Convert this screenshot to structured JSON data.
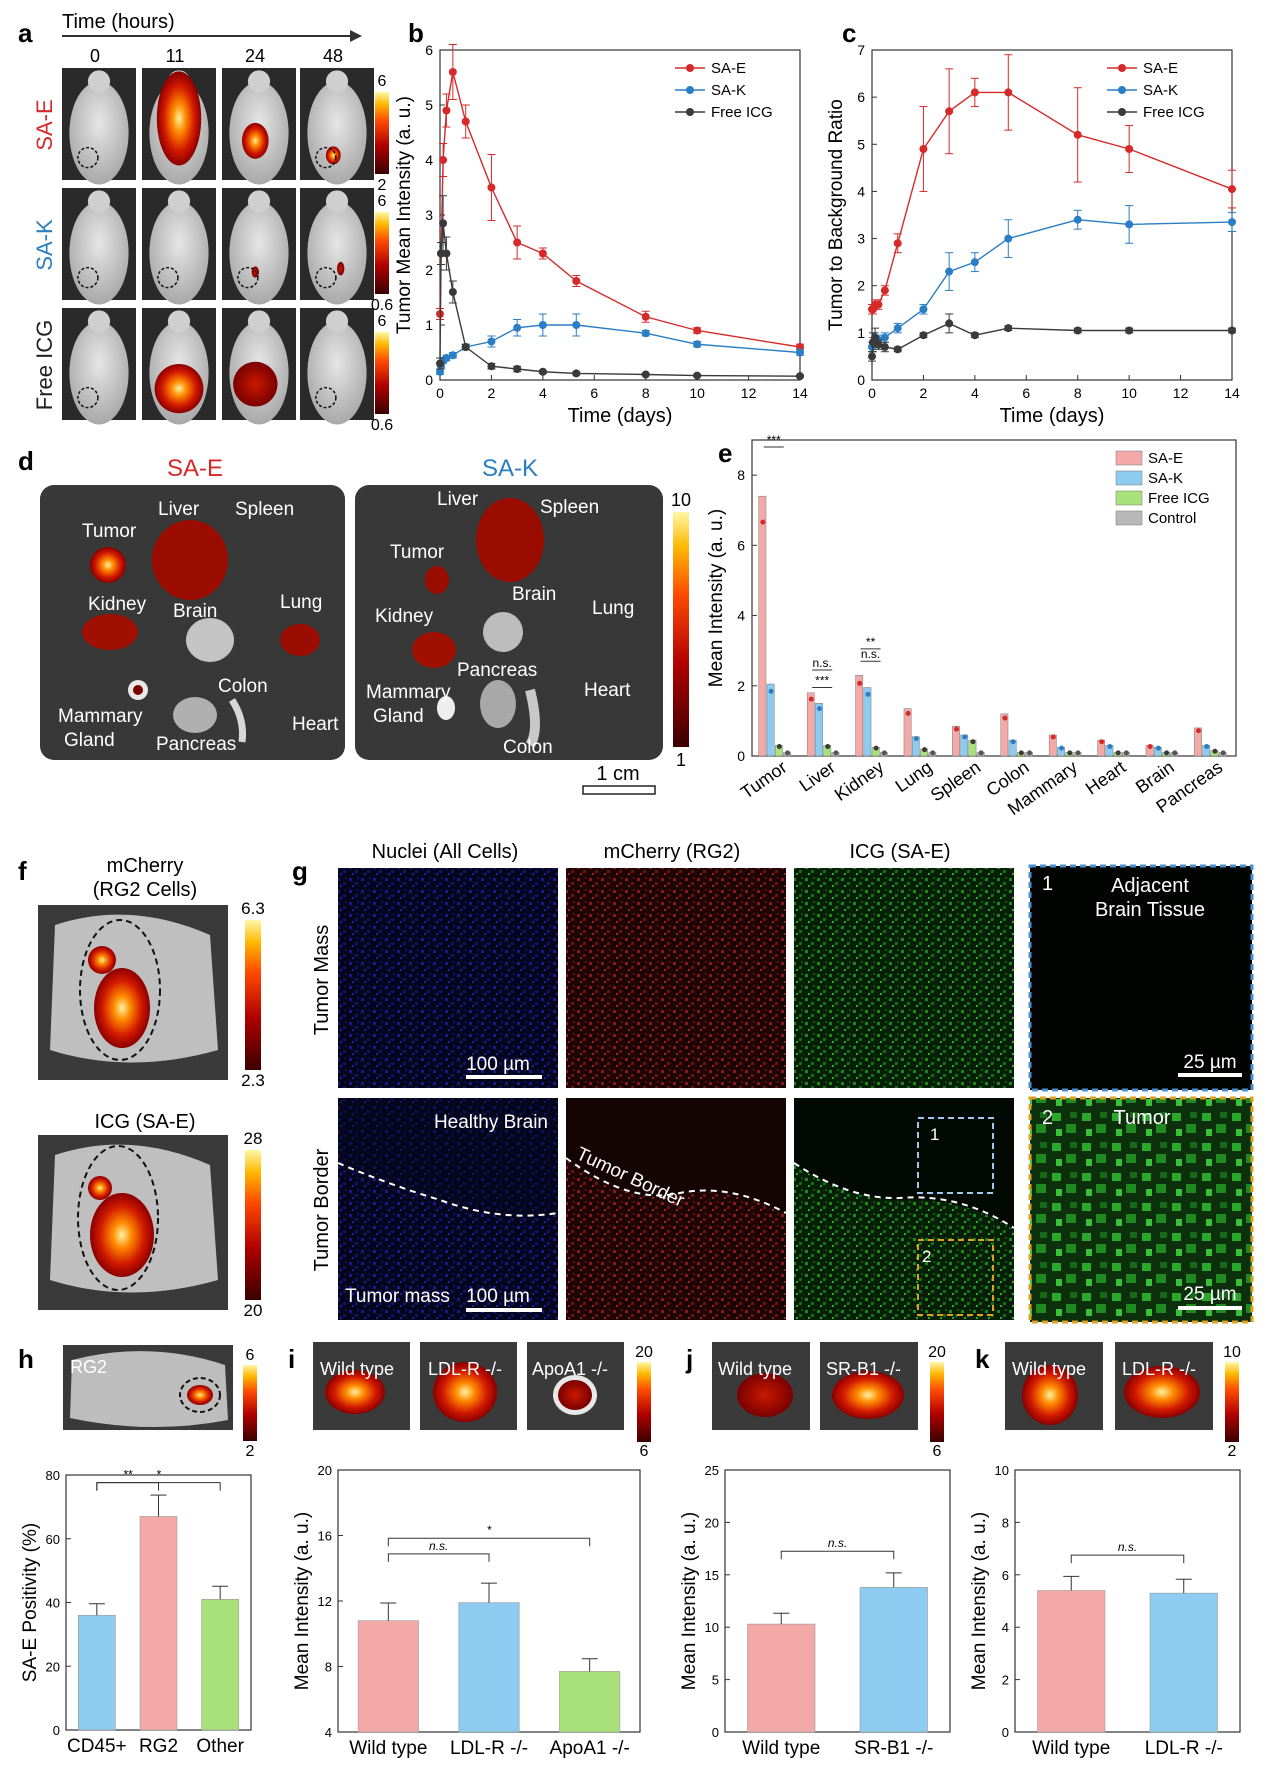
{
  "colors": {
    "sae": "#d62a2a",
    "sak": "#2a7ec4",
    "free": "#3a3a3a",
    "pink": "#f4a9a9",
    "blue": "#8ecbf0",
    "green": "#a9e27a",
    "grey": "#b8b8b8",
    "hot_low": "#7a0000",
    "hot_high": "#fff7a8"
  },
  "panel_letters": [
    "a",
    "b",
    "c",
    "d",
    "e",
    "f",
    "g",
    "h",
    "i",
    "j",
    "k"
  ],
  "panel_a": {
    "time_title": "Time (hours)",
    "timepoints": [
      "0",
      "11",
      "24",
      "48"
    ],
    "rows": [
      {
        "label": "SA-E",
        "scale_max": "6",
        "scale_min": "2"
      },
      {
        "label": "SA-K",
        "scale_max": "6",
        "scale_min": "0.6"
      },
      {
        "label": "Free ICG",
        "scale_max": "6",
        "scale_min": "0.6"
      }
    ]
  },
  "panel_d": {
    "left_title": "SA-E",
    "right_title": "SA-K",
    "left_labels": [
      "Tumor",
      "Liver",
      "Spleen",
      "Kidney",
      "Brain",
      "Lung",
      "Colon",
      "Mammary",
      "Gland",
      "Heart",
      "Pancreas"
    ],
    "right_labels": [
      "Liver",
      "Spleen",
      "Tumor",
      "Brain",
      "Kidney",
      "Lung",
      "Pancreas",
      "Mammary",
      "Gland",
      "Heart",
      "Colon"
    ],
    "scale_max": "10",
    "scale_min": "1",
    "scalebar": "1 cm"
  },
  "panel_f": {
    "top_title_1": "mCherry",
    "top_title_2": "(RG2 Cells)",
    "top_max": "6.3",
    "top_min": "2.3",
    "bottom_title": "ICG (SA-E)",
    "bottom_max": "28",
    "bottom_min": "20"
  },
  "panel_g": {
    "col_titles": [
      "Nuclei (All Cells)",
      "mCherry (RG2)",
      "ICG (SA-E)"
    ],
    "row_titles": [
      "Tumor Mass",
      "Tumor Border"
    ],
    "scalebar_100": "100 µm",
    "scalebar_25": "25 µm",
    "healthy_brain": "Healthy Brain",
    "tumor_mass": "Tumor mass",
    "tumor_border": "Tumor Border",
    "box1": "1",
    "box2": "2",
    "inset1_num": "1",
    "inset1_line1": "Adjacent",
    "inset1_line2": "Brain Tissue",
    "inset2_num": "2",
    "inset2_title": "Tumor"
  },
  "panel_h": {
    "image_label": "RG2",
    "scale_max": "6",
    "scale_min": "2"
  },
  "panel_i": {
    "images": [
      "Wild type",
      "LDL-R -/-",
      "ApoA1 -/-"
    ],
    "scale_max": "20",
    "scale_min": "6"
  },
  "panel_j": {
    "images": [
      "Wild type",
      "SR-B1 -/-"
    ],
    "scale_max": "20",
    "scale_min": "6"
  },
  "panel_k": {
    "images": [
      "Wild type",
      "LDL-R -/-"
    ],
    "scale_max": "10",
    "scale_min": "2"
  },
  "chart_data": [
    {
      "id": "b",
      "type": "line",
      "xlabel": "Time (days)",
      "ylabel": "Tumor Mean Intensity (a. u.)",
      "xlim": [
        0,
        14
      ],
      "ylim": [
        0,
        6
      ],
      "xticks": [
        0,
        2,
        4,
        6,
        8,
        10,
        12,
        14
      ],
      "yticks": [
        0,
        1,
        2,
        3,
        4,
        5,
        6
      ],
      "legend": [
        "SA-E",
        "SA-K",
        "Free ICG"
      ],
      "series": [
        {
          "name": "SA-E",
          "x": [
            0,
            0.04,
            0.12,
            0.25,
            0.5,
            1,
            2,
            3,
            4,
            5.3,
            8,
            10,
            14
          ],
          "y": [
            1.2,
            2.3,
            4.0,
            4.9,
            5.6,
            4.7,
            3.5,
            2.5,
            2.3,
            1.8,
            1.15,
            0.9,
            0.6
          ],
          "err": [
            0.1,
            0.2,
            0.3,
            0.3,
            0.5,
            0.3,
            0.6,
            0.3,
            0.1,
            0.1,
            0.1,
            0.05,
            0.05
          ]
        },
        {
          "name": "SA-K",
          "x": [
            0,
            0.04,
            0.12,
            0.25,
            0.5,
            1,
            2,
            3,
            4,
            5.3,
            8,
            10,
            14
          ],
          "y": [
            0.15,
            0.25,
            0.35,
            0.4,
            0.45,
            0.6,
            0.7,
            0.95,
            1.0,
            1.0,
            0.85,
            0.65,
            0.5
          ],
          "err": [
            0.05,
            0.05,
            0.05,
            0.05,
            0.05,
            0.05,
            0.1,
            0.15,
            0.2,
            0.2,
            0.05,
            0.05,
            0.05
          ]
        },
        {
          "name": "Free ICG",
          "x": [
            0,
            0.04,
            0.12,
            0.25,
            0.5,
            1,
            2,
            3,
            4,
            5.3,
            8,
            10,
            14
          ],
          "y": [
            0.3,
            2.3,
            2.85,
            2.3,
            1.6,
            0.6,
            0.25,
            0.2,
            0.15,
            0.12,
            0.1,
            0.08,
            0.07
          ],
          "err": [
            0.1,
            0.2,
            0.5,
            0.3,
            0.2,
            0.05,
            0.05,
            0.05,
            0.03,
            0.03,
            0.02,
            0.02,
            0.02
          ]
        }
      ]
    },
    {
      "id": "c",
      "type": "line",
      "xlabel": "Time (days)",
      "ylabel": "Tumor to Background Ratio",
      "xlim": [
        0,
        14
      ],
      "ylim": [
        0,
        7
      ],
      "xticks": [
        0,
        2,
        4,
        6,
        8,
        10,
        12,
        14
      ],
      "yticks": [
        0,
        1,
        2,
        3,
        4,
        5,
        6,
        7
      ],
      "legend": [
        "SA-E",
        "SA-K",
        "Free ICG"
      ],
      "series": [
        {
          "name": "SA-E",
          "x": [
            0,
            0.04,
            0.12,
            0.25,
            0.5,
            1,
            2,
            3,
            4,
            5.3,
            8,
            10,
            14
          ],
          "y": [
            1.5,
            1.5,
            1.6,
            1.6,
            1.9,
            2.9,
            4.9,
            5.7,
            6.1,
            6.1,
            5.2,
            4.9,
            4.05
          ],
          "err": [
            0.1,
            0.1,
            0.1,
            0.1,
            0.1,
            0.2,
            0.9,
            0.9,
            0.3,
            0.8,
            1.0,
            0.5,
            0.4
          ]
        },
        {
          "name": "SA-K",
          "x": [
            0,
            0.04,
            0.12,
            0.25,
            0.5,
            1,
            2,
            3,
            4,
            5.3,
            8,
            10,
            14
          ],
          "y": [
            0.7,
            0.8,
            0.9,
            0.85,
            0.9,
            1.1,
            1.5,
            2.3,
            2.5,
            3.0,
            3.4,
            3.3,
            3.35
          ],
          "err": [
            0.1,
            0.1,
            0.1,
            0.1,
            0.1,
            0.1,
            0.1,
            0.4,
            0.2,
            0.4,
            0.2,
            0.4,
            0.2
          ]
        },
        {
          "name": "Free ICG",
          "x": [
            0,
            0.04,
            0.12,
            0.25,
            0.5,
            1,
            2,
            3,
            4,
            5.3,
            8,
            10,
            14
          ],
          "y": [
            0.5,
            0.8,
            0.9,
            0.75,
            0.7,
            0.65,
            0.95,
            1.2,
            0.95,
            1.1,
            1.05,
            1.05,
            1.05
          ],
          "err": [
            0.1,
            0.2,
            0.2,
            0.1,
            0.1,
            0.05,
            0.05,
            0.2,
            0.05,
            0.05,
            0.05,
            0.05,
            0.05
          ]
        }
      ]
    },
    {
      "id": "e",
      "type": "bar",
      "ylabel": "Mean Intensity (a. u.)",
      "ylim": [
        0,
        9
      ],
      "yticks": [
        0,
        2,
        4,
        6,
        8
      ],
      "categories": [
        "Tumor",
        "Liver",
        "Kidney",
        "Lung",
        "Spleen",
        "Colon",
        "Mammary",
        "Heart",
        "Brain",
        "Pancreas"
      ],
      "series": [
        {
          "name": "SA-E",
          "values": [
            7.4,
            1.8,
            2.3,
            1.35,
            0.85,
            1.2,
            0.6,
            0.45,
            0.3,
            0.8
          ]
        },
        {
          "name": "SA-K",
          "values": [
            2.05,
            1.5,
            1.95,
            0.55,
            0.6,
            0.45,
            0.25,
            0.3,
            0.25,
            0.3
          ]
        },
        {
          "name": "Free ICG",
          "values": [
            0.3,
            0.3,
            0.25,
            0.2,
            0.45,
            0.1,
            0.1,
            0.1,
            0.1,
            0.15
          ]
        },
        {
          "name": "Control",
          "values": [
            0.1,
            0.1,
            0.1,
            0.1,
            0.1,
            0.1,
            0.1,
            0.1,
            0.1,
            0.1
          ]
        }
      ],
      "annotations": [
        "***",
        "***",
        "n.s.",
        "n.s.",
        "**"
      ]
    },
    {
      "id": "h",
      "type": "bar",
      "ylabel": "SA-E Positivity (%)",
      "ylim": [
        0,
        80
      ],
      "yticks": [
        0,
        20,
        40,
        60,
        80
      ],
      "categories": [
        "CD45+",
        "RG2",
        "Other"
      ],
      "values": [
        36,
        67,
        41
      ],
      "annotations": [
        "**",
        "*"
      ]
    },
    {
      "id": "i",
      "type": "bar",
      "ylabel": "Mean Intensity (a. u.)",
      "ylim": [
        4,
        20
      ],
      "yticks": [
        4,
        8,
        12,
        16,
        20
      ],
      "categories": [
        "Wild type",
        "LDL-R -/-",
        "ApoA1 -/-"
      ],
      "values": [
        10.8,
        11.9,
        7.7
      ],
      "annotations": [
        "n.s.",
        "*"
      ]
    },
    {
      "id": "j",
      "type": "bar",
      "ylabel": "Mean Intensity (a. u.)",
      "ylim": [
        0,
        25
      ],
      "yticks": [
        0,
        5,
        10,
        15,
        20,
        25
      ],
      "categories": [
        "Wild type",
        "SR-B1 -/-"
      ],
      "values": [
        10.3,
        13.8
      ],
      "annotations": [
        "n.s."
      ]
    },
    {
      "id": "k",
      "type": "bar",
      "ylabel": "Mean Intensity (a. u.)",
      "ylim": [
        0,
        10
      ],
      "yticks": [
        0,
        2,
        4,
        6,
        8,
        10
      ],
      "categories": [
        "Wild type",
        "LDL-R -/-"
      ],
      "values": [
        5.4,
        5.3
      ],
      "annotations": [
        "n.s."
      ]
    }
  ]
}
